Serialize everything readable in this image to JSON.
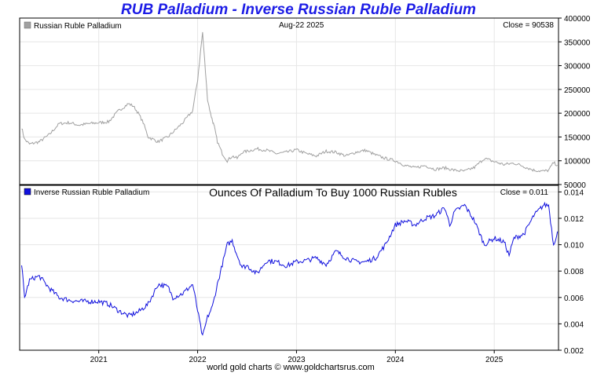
{
  "title": "RUB Palladium - Inverse Russian Ruble Palladium",
  "footer": "world gold charts © www.goldchartsrus.com",
  "colors": {
    "title": "#1c1ce6",
    "top_series": "#a0a0a0",
    "bottom_series": "#1010dd",
    "grid": "#e6e6e6"
  },
  "chart_data": [
    {
      "type": "line",
      "legend": "Russian Ruble Palladium",
      "date_label": "Aug-22  2025",
      "close_label": "Close = 90538",
      "close": 90538,
      "ylim": [
        50000,
        400000
      ],
      "yticks": [
        50000,
        100000,
        150000,
        200000,
        250000,
        300000,
        350000,
        400000
      ],
      "ytick_labels": [
        "50000",
        "100000",
        "150000",
        "200000",
        "250000",
        "300000",
        "350000",
        "400000"
      ],
      "x": [
        2020.22,
        2020.25,
        2020.3,
        2020.4,
        2020.5,
        2020.6,
        2020.7,
        2020.8,
        2020.9,
        2021.0,
        2021.1,
        2021.2,
        2021.3,
        2021.35,
        2021.4,
        2021.45,
        2021.5,
        2021.6,
        2021.7,
        2021.75,
        2021.85,
        2021.95,
        2022.0,
        2022.05,
        2022.1,
        2022.13,
        2022.15,
        2022.17,
        2022.2,
        2022.25,
        2022.3,
        2022.35,
        2022.4,
        2022.45,
        2022.5,
        2022.6,
        2022.7,
        2022.8,
        2022.9,
        2023.0,
        2023.1,
        2023.2,
        2023.3,
        2023.4,
        2023.5,
        2023.6,
        2023.7,
        2023.8,
        2023.9,
        2024.0,
        2024.1,
        2024.2,
        2024.3,
        2024.4,
        2024.5,
        2024.6,
        2024.7,
        2024.8,
        2024.9,
        2025.0,
        2025.1,
        2025.2,
        2025.3,
        2025.4,
        2025.5,
        2025.55,
        2025.6,
        2025.64
      ],
      "values": [
        170000,
        145000,
        135000,
        140000,
        155000,
        178000,
        180000,
        175000,
        178000,
        180000,
        182000,
        205000,
        220000,
        215000,
        200000,
        180000,
        150000,
        140000,
        150000,
        160000,
        180000,
        205000,
        270000,
        370000,
        230000,
        200000,
        185000,
        170000,
        140000,
        115000,
        100000,
        110000,
        105000,
        118000,
        120000,
        125000,
        122000,
        115000,
        118000,
        123000,
        115000,
        110000,
        120000,
        118000,
        110000,
        118000,
        122000,
        112000,
        105000,
        100000,
        90000,
        85000,
        90000,
        82000,
        85000,
        80000,
        78000,
        86000,
        105000,
        98000,
        92000,
        95000,
        88000,
        80000,
        78000,
        80000,
        96000,
        90538
      ]
    },
    {
      "type": "line",
      "legend": "Inverse Russian Ruble Palladium",
      "subtitle": "Ounces Of Palladium To Buy 1000 Russian Rubles",
      "close_label": "Close = 0.011",
      "close": 0.011,
      "ylim": [
        0.002,
        0.0145
      ],
      "yticks": [
        0.002,
        0.004,
        0.006,
        0.008,
        0.01,
        0.012,
        0.014
      ],
      "ytick_labels": [
        "0.002",
        "0.004",
        "0.006",
        "0.008",
        "0.010",
        "0.012",
        "0.014"
      ],
      "xlim": [
        2020.2,
        2025.65
      ],
      "xticks": [
        2021,
        2022,
        2023,
        2024,
        2025
      ],
      "xtick_labels": [
        "2021",
        "2022",
        "2023",
        "2024",
        "2025"
      ],
      "x": [
        2020.22,
        2020.25,
        2020.3,
        2020.35,
        2020.4,
        2020.5,
        2020.6,
        2020.7,
        2020.8,
        2020.9,
        2021.0,
        2021.1,
        2021.2,
        2021.3,
        2021.4,
        2021.5,
        2021.6,
        2021.7,
        2021.75,
        2021.85,
        2021.95,
        2022.0,
        2022.05,
        2022.1,
        2022.15,
        2022.2,
        2022.25,
        2022.3,
        2022.35,
        2022.4,
        2022.45,
        2022.5,
        2022.6,
        2022.7,
        2022.8,
        2022.9,
        2023.0,
        2023.1,
        2023.2,
        2023.3,
        2023.4,
        2023.5,
        2023.6,
        2023.7,
        2023.8,
        2023.9,
        2024.0,
        2024.1,
        2024.2,
        2024.3,
        2024.4,
        2024.5,
        2024.55,
        2024.6,
        2024.7,
        2024.8,
        2024.9,
        2025.0,
        2025.1,
        2025.15,
        2025.2,
        2025.3,
        2025.4,
        2025.5,
        2025.55,
        2025.6,
        2025.64
      ],
      "values": [
        0.0085,
        0.006,
        0.0073,
        0.0075,
        0.0076,
        0.0067,
        0.006,
        0.0058,
        0.0057,
        0.0057,
        0.0057,
        0.0055,
        0.005,
        0.0046,
        0.0049,
        0.0055,
        0.007,
        0.0068,
        0.006,
        0.0063,
        0.007,
        0.005,
        0.003,
        0.0045,
        0.0053,
        0.007,
        0.0085,
        0.01,
        0.0103,
        0.0092,
        0.0083,
        0.0084,
        0.0078,
        0.0088,
        0.0087,
        0.0084,
        0.0087,
        0.0088,
        0.009,
        0.0085,
        0.0095,
        0.009,
        0.0087,
        0.0087,
        0.009,
        0.01,
        0.0115,
        0.0118,
        0.0115,
        0.012,
        0.0122,
        0.0128,
        0.0115,
        0.0125,
        0.013,
        0.0118,
        0.01,
        0.0105,
        0.0102,
        0.0092,
        0.0105,
        0.0108,
        0.0122,
        0.013,
        0.013,
        0.01,
        0.011
      ]
    }
  ]
}
